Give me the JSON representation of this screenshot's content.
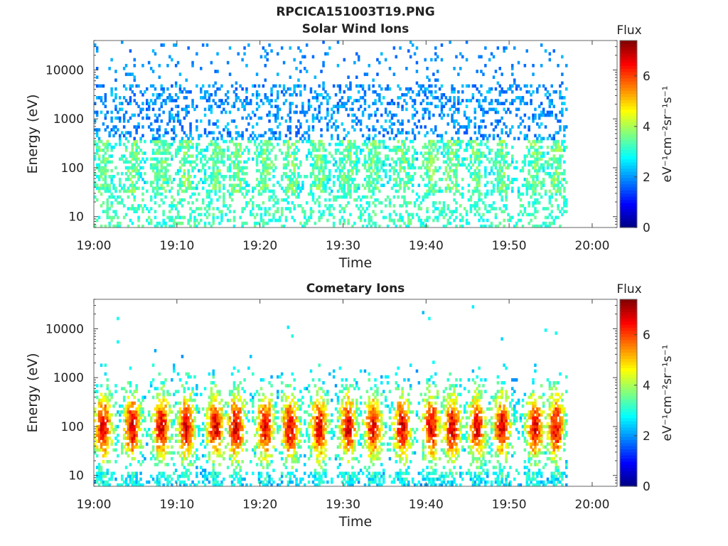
{
  "title": "RPCICA151003T19.PNG",
  "colorbar": {
    "label": "Flux",
    "unit_text": "eV⁻¹cm⁻²sr⁻¹s⁻¹",
    "range": [
      0,
      7.4
    ],
    "ticks": [
      0,
      2,
      4,
      6
    ],
    "colormap": "jet"
  },
  "chart_data": [
    {
      "type": "heatmap",
      "title": "Solar Wind Ions",
      "xlabel": "Time",
      "ylabel": "Energy (eV)",
      "x_ticks": [
        "19:00",
        "19:10",
        "19:20",
        "19:30",
        "19:40",
        "19:50",
        "20:00"
      ],
      "x_range": [
        "19:00",
        "20:03"
      ],
      "y_scale": "log",
      "y_range": [
        6,
        40000
      ],
      "y_ticks": [
        10,
        100,
        1000,
        10000
      ],
      "data_end": "19:57",
      "peak_times_min": [
        1,
        4.5,
        8,
        11,
        14.5,
        17,
        20.5,
        23.5,
        27,
        30.5,
        33.5,
        37,
        40.5,
        43,
        46,
        49,
        53,
        55.5
      ],
      "colorbar_range": [
        0,
        7.4
      ]
    },
    {
      "type": "heatmap",
      "title": "Cometary Ions",
      "xlabel": "Time",
      "ylabel": "Energy (eV)",
      "x_ticks": [
        "19:00",
        "19:10",
        "19:20",
        "19:30",
        "19:40",
        "19:50",
        "20:00"
      ],
      "x_range": [
        "19:00",
        "20:03"
      ],
      "y_scale": "log",
      "y_range": [
        6,
        40000
      ],
      "y_ticks": [
        10,
        100,
        1000,
        10000
      ],
      "data_end": "19:57",
      "peak_times_min": [
        1,
        4.5,
        8,
        11,
        14.5,
        17,
        20.5,
        23.5,
        27,
        30.5,
        33.5,
        37,
        40.5,
        43,
        46,
        49,
        53,
        55.5
      ],
      "colorbar_range": [
        0,
        7.4
      ]
    }
  ]
}
